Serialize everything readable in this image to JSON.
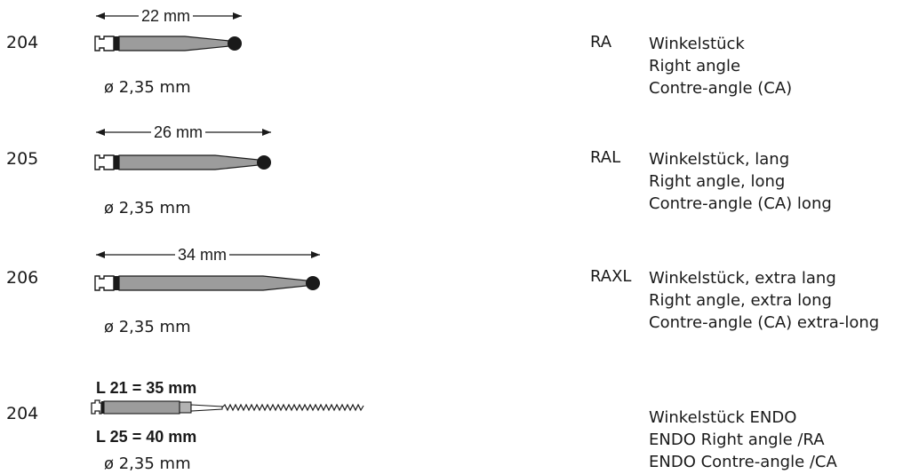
{
  "instruments": [
    {
      "code": "204",
      "length": "22 mm",
      "diameter": "ø 2,35 mm",
      "abbr": "RA",
      "desc": [
        "Winkelstück",
        "Right angle",
        "Contre-angle (CA)"
      ]
    },
    {
      "code": "205",
      "length": "26 mm",
      "diameter": "ø 2,35 mm",
      "abbr": "RAL",
      "desc": [
        "Winkelstück, lang",
        "Right angle, long",
        "Contre-angle (CA) long"
      ]
    },
    {
      "code": "206",
      "length": "34 mm",
      "diameter": "ø 2,35 mm",
      "abbr": "RAXL",
      "desc": [
        "Winkelstück, extra lang",
        "Right angle, extra long",
        "Contre-angle (CA) extra-long"
      ]
    },
    {
      "code": "204",
      "length_lines": [
        "L 21 = 35 mm",
        "L 25 = 40 mm"
      ],
      "diameter": "ø 2,35 mm",
      "abbr": "",
      "desc": [
        "Winkelstück ENDO",
        "ENDO Right angle /RA",
        "ENDO Contre-angle /CA"
      ]
    }
  ]
}
